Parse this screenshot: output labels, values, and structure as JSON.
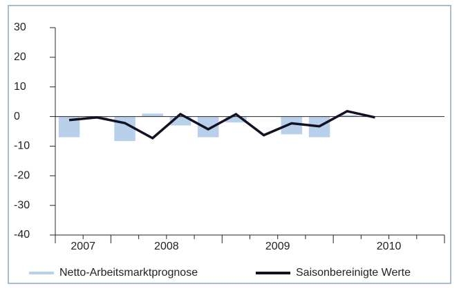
{
  "chart_data": {
    "type": "bar_line",
    "categories": [
      null,
      null,
      null,
      null,
      null,
      null,
      null,
      null,
      null,
      null,
      null,
      null,
      null,
      null
    ],
    "year_labels": [
      "2007",
      "2008",
      "2009",
      "2010"
    ],
    "series": [
      {
        "name": "Netto-Arbeitsmarktprognose",
        "type": "bar",
        "color": "#b9d0ea",
        "values": [
          -7,
          -0.5,
          -8.3,
          1,
          -3,
          -7,
          -2,
          0,
          -6,
          -7,
          0.5,
          0,
          null,
          null
        ]
      },
      {
        "name": "Saisonbereinigte Werte",
        "type": "line",
        "color": "#111122",
        "values": [
          -1.2,
          -0.3,
          -2.2,
          -7.3,
          0.8,
          -4.3,
          0.8,
          -6.3,
          -2.3,
          -3.3,
          1.8,
          -0.3,
          null,
          null
        ]
      }
    ],
    "ylim": [
      -40,
      30
    ],
    "yticks": [
      -40,
      -30,
      -20,
      -10,
      0,
      10,
      20,
      30
    ]
  }
}
